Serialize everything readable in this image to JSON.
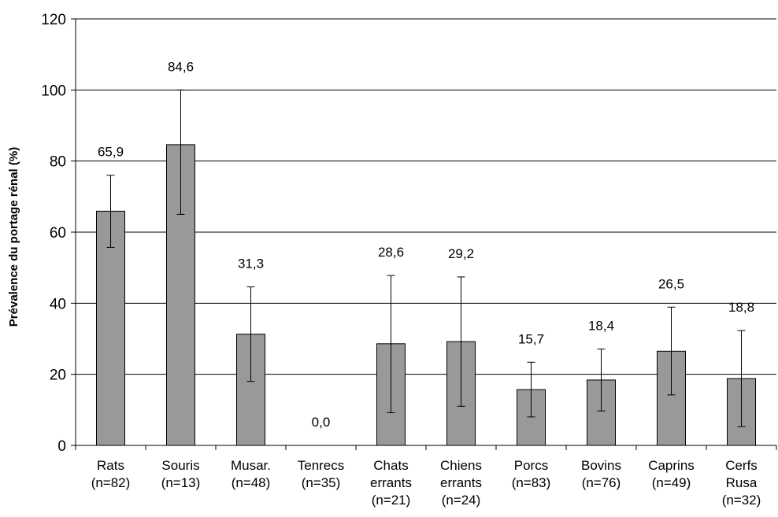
{
  "chart_data": {
    "type": "bar",
    "title": "",
    "xlabel": "",
    "ylabel": "Prévalence du portage rénal (%)",
    "ylim": [
      0,
      120
    ],
    "yticks": [
      0,
      20,
      40,
      60,
      80,
      100,
      120
    ],
    "grid": true,
    "categories": [
      [
        "Rats",
        "(n=82)"
      ],
      [
        "Souris",
        "(n=13)"
      ],
      [
        "Musar.",
        "(n=48)"
      ],
      [
        "Tenrecs",
        "(n=35)"
      ],
      [
        "Chats",
        "errants",
        "(n=21)"
      ],
      [
        "Chiens",
        "errants",
        "(n=24)"
      ],
      [
        "Porcs",
        "(n=83)"
      ],
      [
        "Bovins",
        "(n=76)"
      ],
      [
        "Caprins",
        "(n=49)"
      ],
      [
        "Cerfs",
        "Rusa",
        "(n=32)"
      ]
    ],
    "values": [
      65.9,
      84.6,
      31.3,
      0.0,
      28.6,
      29.2,
      15.7,
      18.4,
      26.5,
      18.8
    ],
    "value_labels": [
      "65,9",
      "84,6",
      "31,3",
      "0,0",
      "28,6",
      "29,2",
      "15,7",
      "18,4",
      "26,5",
      "18,8"
    ],
    "error_low": [
      55.7,
      65.0,
      18.0,
      0.0,
      9.2,
      11.0,
      8.0,
      9.7,
      14.2,
      5.3
    ],
    "error_high": [
      76.0,
      100.0,
      44.6,
      0.0,
      47.8,
      47.4,
      23.4,
      27.1,
      38.9,
      32.3
    ],
    "colors": {
      "bar": "#999999",
      "bar_stroke": "#000000",
      "grid": "#000000",
      "axis": "#000000"
    }
  }
}
